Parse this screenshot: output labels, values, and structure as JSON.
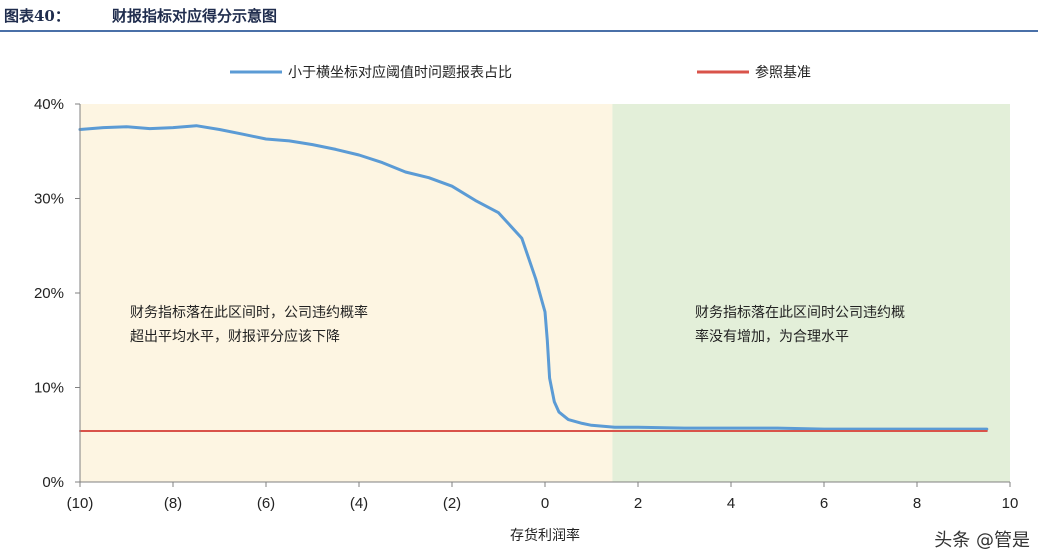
{
  "header": {
    "label": "图表40：",
    "title": "财报指标对应得分示意图"
  },
  "chart_data": {
    "type": "line",
    "xlabel": "存货利润率",
    "ylabel": "",
    "xlim": [
      -10,
      10
    ],
    "ylim": [
      0,
      0.4
    ],
    "x_tick_labels": [
      "(10)",
      "(8)",
      "(6)",
      "(4)",
      "(2)",
      "0",
      "2",
      "4",
      "6",
      "8",
      "10"
    ],
    "x_ticks": [
      -10,
      -8,
      -6,
      -4,
      -2,
      0,
      2,
      4,
      6,
      8,
      10
    ],
    "y_tick_labels": [
      "0%",
      "10%",
      "20%",
      "30%",
      "40%"
    ],
    "y_ticks": [
      0,
      0.1,
      0.2,
      0.3,
      0.4
    ],
    "legend_position": "top",
    "regions": [
      {
        "x_range": [
          -10,
          1.45
        ],
        "color": "#fdf5e2",
        "text_lines": [
          "财务指标落在此区间时，公司违约概率",
          "超出平均水平，财报评分应该下降"
        ]
      },
      {
        "x_range": [
          1.45,
          10
        ],
        "color": "#e3efd9",
        "text_lines": [
          "财务指标落在此区间时公司违约概",
          "率没有增加，为合理水平"
        ]
      }
    ],
    "series": [
      {
        "name": "小于横坐标对应阈值时问题报表占比",
        "color": "#5b9bd5",
        "x": [
          -10,
          -9.5,
          -9,
          -8.5,
          -8,
          -7.5,
          -7,
          -6.5,
          -6,
          -5.5,
          -5,
          -4.5,
          -4,
          -3.5,
          -3,
          -2.5,
          -2,
          -1.5,
          -1,
          -0.5,
          -0.2,
          0,
          0.05,
          0.1,
          0.2,
          0.3,
          0.5,
          0.8,
          1,
          1.5,
          2,
          3,
          4,
          5,
          6,
          7,
          8,
          9,
          9.5
        ],
        "values": [
          0.373,
          0.375,
          0.376,
          0.374,
          0.375,
          0.377,
          0.373,
          0.368,
          0.363,
          0.361,
          0.357,
          0.352,
          0.346,
          0.338,
          0.328,
          0.322,
          0.313,
          0.298,
          0.285,
          0.258,
          0.215,
          0.18,
          0.15,
          0.11,
          0.085,
          0.074,
          0.066,
          0.062,
          0.06,
          0.058,
          0.058,
          0.057,
          0.057,
          0.057,
          0.056,
          0.056,
          0.056,
          0.056,
          0.056
        ]
      },
      {
        "name": "参照基准",
        "color": "#d9534a",
        "x": [
          -10,
          9.5
        ],
        "values": [
          0.054,
          0.054
        ]
      }
    ]
  },
  "watermark": "头条 @管是"
}
